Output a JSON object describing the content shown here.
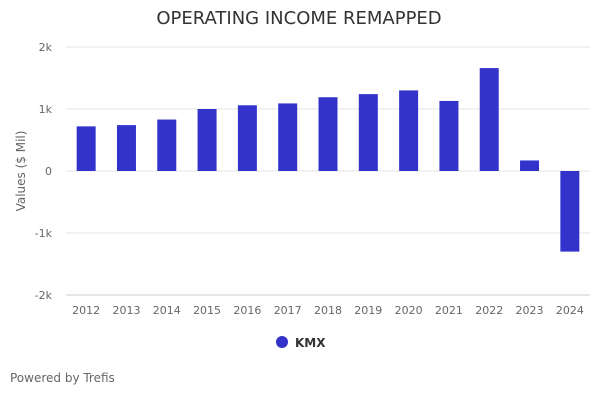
{
  "chart_data": {
    "type": "bar",
    "title": "OPERATING INCOME REMAPPED",
    "xlabel": "",
    "ylabel": "Values ($ Mil)",
    "ylim": [
      -2000,
      2000
    ],
    "yticks": [
      {
        "value": 2000,
        "label": "2k"
      },
      {
        "value": 1000,
        "label": "1k"
      },
      {
        "value": 0,
        "label": "0"
      },
      {
        "value": -1000,
        "label": "-1k"
      },
      {
        "value": -2000,
        "label": "-2k"
      }
    ],
    "categories": [
      "2012",
      "2013",
      "2014",
      "2015",
      "2016",
      "2017",
      "2018",
      "2019",
      "2020",
      "2021",
      "2022",
      "2023",
      "2024"
    ],
    "series": [
      {
        "name": "KMX",
        "color": "#3333cc",
        "values": [
          720,
          740,
          830,
          1000,
          1060,
          1090,
          1190,
          1240,
          1300,
          1130,
          1660,
          170,
          -1300
        ]
      }
    ],
    "grid": true,
    "legend_position": "bottom-center"
  },
  "footer": {
    "text": "Powered by Trefis"
  }
}
